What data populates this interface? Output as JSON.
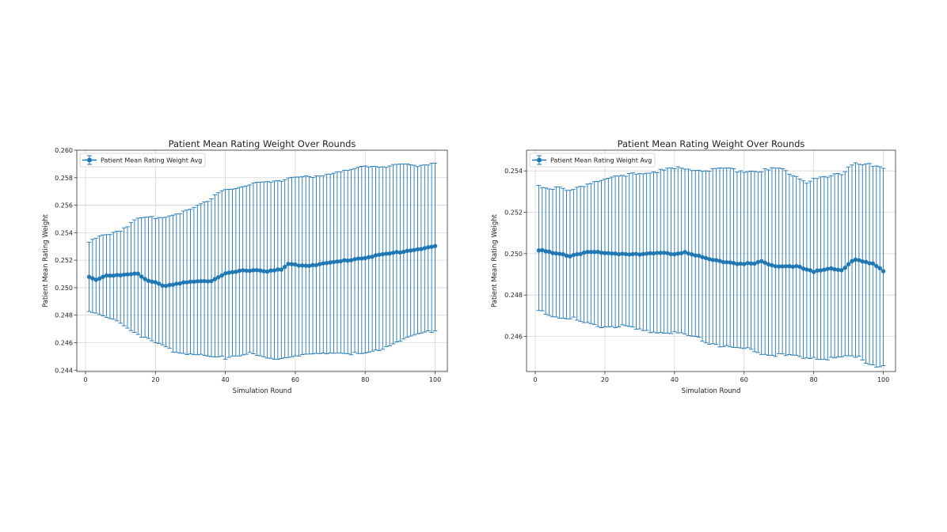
{
  "colors": {
    "series": "#1f77b4",
    "grid": "#d6d6d6",
    "axis": "#333333"
  },
  "chart_data": [
    {
      "type": "line",
      "title": "Patient Mean Rating Weight Over Rounds",
      "xlabel": "Simulation Round",
      "ylabel": "Patient Mean Rating Weight",
      "legend": "Patient Mean Rating Weight Avg",
      "legend_position": "upper-left",
      "grid": true,
      "xlim": [
        -2.5,
        103.5
      ],
      "ylim": [
        0.2439,
        0.26
      ],
      "xticks": [
        0,
        20,
        40,
        60,
        80,
        100
      ],
      "xtick_labels": [
        "0",
        "20",
        "40",
        "60",
        "80",
        "100"
      ],
      "yticks": [
        0.244,
        0.246,
        0.248,
        0.25,
        0.252,
        0.254,
        0.256,
        0.258,
        0.26
      ],
      "ytick_labels": [
        "0.244",
        "0.246",
        "0.248",
        "0.250",
        "0.252",
        "0.254",
        "0.256",
        "0.258",
        "0.260"
      ],
      "x_range": [
        1,
        100
      ],
      "mean_anchors": [
        [
          1,
          0.2508
        ],
        [
          3,
          0.2506
        ],
        [
          6,
          0.2509
        ],
        [
          10,
          0.2509
        ],
        [
          15,
          0.251
        ],
        [
          18,
          0.2505
        ],
        [
          20,
          0.2504
        ],
        [
          23,
          0.2501
        ],
        [
          27,
          0.2503
        ],
        [
          32,
          0.2505
        ],
        [
          36,
          0.2505
        ],
        [
          40,
          0.251
        ],
        [
          44,
          0.2512
        ],
        [
          48,
          0.2513
        ],
        [
          52,
          0.2512
        ],
        [
          56,
          0.2513
        ],
        [
          58,
          0.2517
        ],
        [
          63,
          0.2516
        ],
        [
          70,
          0.2518
        ],
        [
          75,
          0.252
        ],
        [
          80,
          0.2522
        ],
        [
          85,
          0.2524
        ],
        [
          90,
          0.2526
        ],
        [
          95,
          0.2528
        ],
        [
          100,
          0.253
        ]
      ],
      "upper_anchors": [
        [
          1,
          0.2533
        ],
        [
          5,
          0.2538
        ],
        [
          10,
          0.2542
        ],
        [
          15,
          0.255
        ],
        [
          20,
          0.2551
        ],
        [
          25,
          0.2553
        ],
        [
          30,
          0.2557
        ],
        [
          35,
          0.2563
        ],
        [
          38,
          0.257
        ],
        [
          40,
          0.2572
        ],
        [
          43,
          0.2572
        ],
        [
          46,
          0.2574
        ],
        [
          50,
          0.2577
        ],
        [
          55,
          0.2578
        ],
        [
          60,
          0.258
        ],
        [
          65,
          0.2581
        ],
        [
          70,
          0.2583
        ],
        [
          75,
          0.2585
        ],
        [
          80,
          0.2589
        ],
        [
          85,
          0.2588
        ],
        [
          90,
          0.2589
        ],
        [
          95,
          0.2589
        ],
        [
          100,
          0.2591
        ]
      ],
      "lower_anchors": [
        [
          1,
          0.2483
        ],
        [
          5,
          0.2479
        ],
        [
          10,
          0.2475
        ],
        [
          15,
          0.2466
        ],
        [
          20,
          0.246
        ],
        [
          25,
          0.2454
        ],
        [
          30,
          0.2452
        ],
        [
          35,
          0.245
        ],
        [
          40,
          0.2449
        ],
        [
          43,
          0.2451
        ],
        [
          47,
          0.2452
        ],
        [
          50,
          0.245
        ],
        [
          53,
          0.2448
        ],
        [
          55,
          0.2448
        ],
        [
          60,
          0.2451
        ],
        [
          65,
          0.2451
        ],
        [
          70,
          0.2453
        ],
        [
          75,
          0.2452
        ],
        [
          80,
          0.2452
        ],
        [
          85,
          0.2456
        ],
        [
          90,
          0.2462
        ],
        [
          95,
          0.2466
        ],
        [
          100,
          0.2469
        ]
      ]
    },
    {
      "type": "line",
      "title": "Patient Mean Rating Weight Over Rounds",
      "xlabel": "Simulation Round",
      "ylabel": "Patient Mean Rating Weight",
      "legend": "Patient Mean Rating Weight Avg",
      "legend_position": "upper-left",
      "grid": true,
      "xlim": [
        -2.5,
        103.5
      ],
      "ylim": [
        0.2443,
        0.255
      ],
      "xticks": [
        0,
        20,
        40,
        60,
        80,
        100
      ],
      "xtick_labels": [
        "0",
        "20",
        "40",
        "60",
        "80",
        "100"
      ],
      "yticks": [
        0.246,
        0.248,
        0.25,
        0.252,
        0.254
      ],
      "ytick_labels": [
        "0.246",
        "0.248",
        "0.250",
        "0.252",
        "0.254"
      ],
      "x_range": [
        1,
        100
      ],
      "mean_anchors": [
        [
          1,
          0.2502
        ],
        [
          5,
          0.25
        ],
        [
          10,
          0.2499
        ],
        [
          15,
          0.2501
        ],
        [
          20,
          0.25
        ],
        [
          25,
          0.25
        ],
        [
          30,
          0.25
        ],
        [
          35,
          0.25
        ],
        [
          40,
          0.25
        ],
        [
          43,
          0.2501
        ],
        [
          46,
          0.2499
        ],
        [
          50,
          0.2497
        ],
        [
          55,
          0.2496
        ],
        [
          60,
          0.2495
        ],
        [
          63,
          0.2495
        ],
        [
          65,
          0.2496
        ],
        [
          68,
          0.2494
        ],
        [
          70,
          0.2494
        ],
        [
          75,
          0.2494
        ],
        [
          78,
          0.2492
        ],
        [
          80,
          0.2491
        ],
        [
          85,
          0.2493
        ],
        [
          88,
          0.2492
        ],
        [
          90,
          0.2495
        ],
        [
          92,
          0.2497
        ],
        [
          94,
          0.2496
        ],
        [
          97,
          0.2495
        ],
        [
          100,
          0.2492
        ]
      ],
      "upper_anchors": [
        [
          1,
          0.2533
        ],
        [
          5,
          0.2532
        ],
        [
          8,
          0.2531
        ],
        [
          10,
          0.253
        ],
        [
          15,
          0.2534
        ],
        [
          20,
          0.2536
        ],
        [
          25,
          0.2537
        ],
        [
          30,
          0.2539
        ],
        [
          35,
          0.254
        ],
        [
          40,
          0.2541
        ],
        [
          45,
          0.2541
        ],
        [
          50,
          0.254
        ],
        [
          55,
          0.2541
        ],
        [
          60,
          0.254
        ],
        [
          65,
          0.254
        ],
        [
          70,
          0.2541
        ],
        [
          75,
          0.2538
        ],
        [
          78,
          0.2535
        ],
        [
          80,
          0.2536
        ],
        [
          85,
          0.2537
        ],
        [
          88,
          0.2539
        ],
        [
          90,
          0.2542
        ],
        [
          92,
          0.2544
        ],
        [
          95,
          0.2543
        ],
        [
          100,
          0.2541
        ]
      ],
      "lower_anchors": [
        [
          1,
          0.2472
        ],
        [
          5,
          0.247
        ],
        [
          10,
          0.2469
        ],
        [
          15,
          0.2466
        ],
        [
          20,
          0.2465
        ],
        [
          25,
          0.2465
        ],
        [
          30,
          0.2463
        ],
        [
          35,
          0.2462
        ],
        [
          40,
          0.2462
        ],
        [
          45,
          0.246
        ],
        [
          50,
          0.2457
        ],
        [
          55,
          0.2455
        ],
        [
          60,
          0.2454
        ],
        [
          65,
          0.2452
        ],
        [
          70,
          0.2451
        ],
        [
          75,
          0.245
        ],
        [
          80,
          0.245
        ],
        [
          85,
          0.2449
        ],
        [
          90,
          0.245
        ],
        [
          93,
          0.2451
        ],
        [
          95,
          0.2448
        ],
        [
          98,
          0.2446
        ],
        [
          100,
          0.2445
        ]
      ]
    }
  ]
}
